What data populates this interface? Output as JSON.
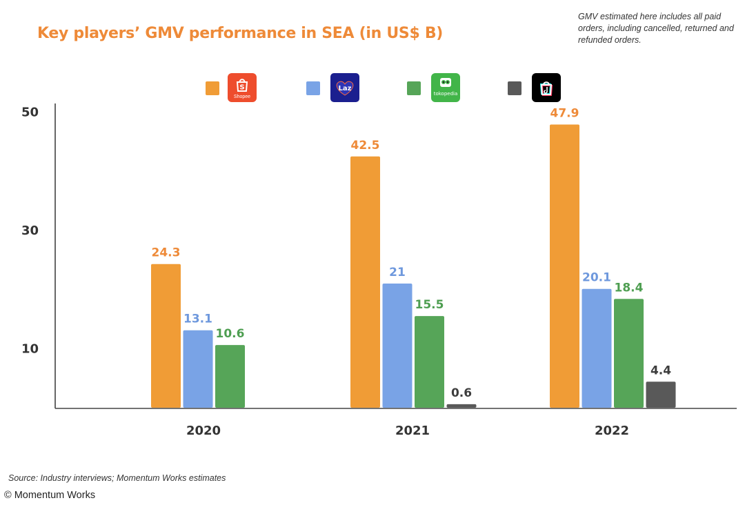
{
  "title": "Key players’ GMV performance in SEA (in US$ B)",
  "note": "GMV estimated here includes all paid orders, including cancelled, returned and refunded orders.",
  "source": "Source: Industry interviews; Momentum Works estimates",
  "copyright": "© Momentum Works",
  "legend": [
    {
      "key": "shopee",
      "color": "#f09c36",
      "logo_text": "S",
      "logo_caption": "Shopee",
      "icon": "shopee-bag-icon"
    },
    {
      "key": "lazada",
      "color": "#79a3e6",
      "logo_text": "Laz",
      "icon": "lazada-heart-icon"
    },
    {
      "key": "tokopedia",
      "color": "#56a558",
      "logo_text": "tokopedia",
      "icon": "tokopedia-owl-icon"
    },
    {
      "key": "tiktok",
      "color": "#595959",
      "logo_text": "",
      "icon": "tiktok-note-icon"
    }
  ],
  "chart_data": {
    "type": "bar",
    "categories": [
      "2020",
      "2021",
      "2022"
    ],
    "series": [
      {
        "key": "shopee",
        "values": [
          24.3,
          42.5,
          47.9
        ],
        "labels": [
          "24.3",
          "42.5",
          "47.9"
        ],
        "color": "#f09c36",
        "label_color": "#ee8a38"
      },
      {
        "key": "lazada",
        "values": [
          13.1,
          21,
          20.1
        ],
        "labels": [
          "13.1",
          "21",
          "20.1"
        ],
        "color": "#79a3e6",
        "label_color": "#6e98dd"
      },
      {
        "key": "tokopedia",
        "values": [
          10.6,
          15.5,
          18.4
        ],
        "labels": [
          "10.6",
          "15.5",
          "18.4"
        ],
        "color": "#56a558",
        "label_color": "#4e9e51"
      },
      {
        "key": "tiktok",
        "values": [
          null,
          0.6,
          4.4
        ],
        "labels": [
          "",
          "0.6",
          "4.4"
        ],
        "color": "#595959",
        "label_color": "#3d3d3d"
      }
    ],
    "yticks": [
      10,
      30,
      50
    ],
    "ylim": [
      0,
      50
    ],
    "grid": false,
    "legend_position": "top-center"
  }
}
